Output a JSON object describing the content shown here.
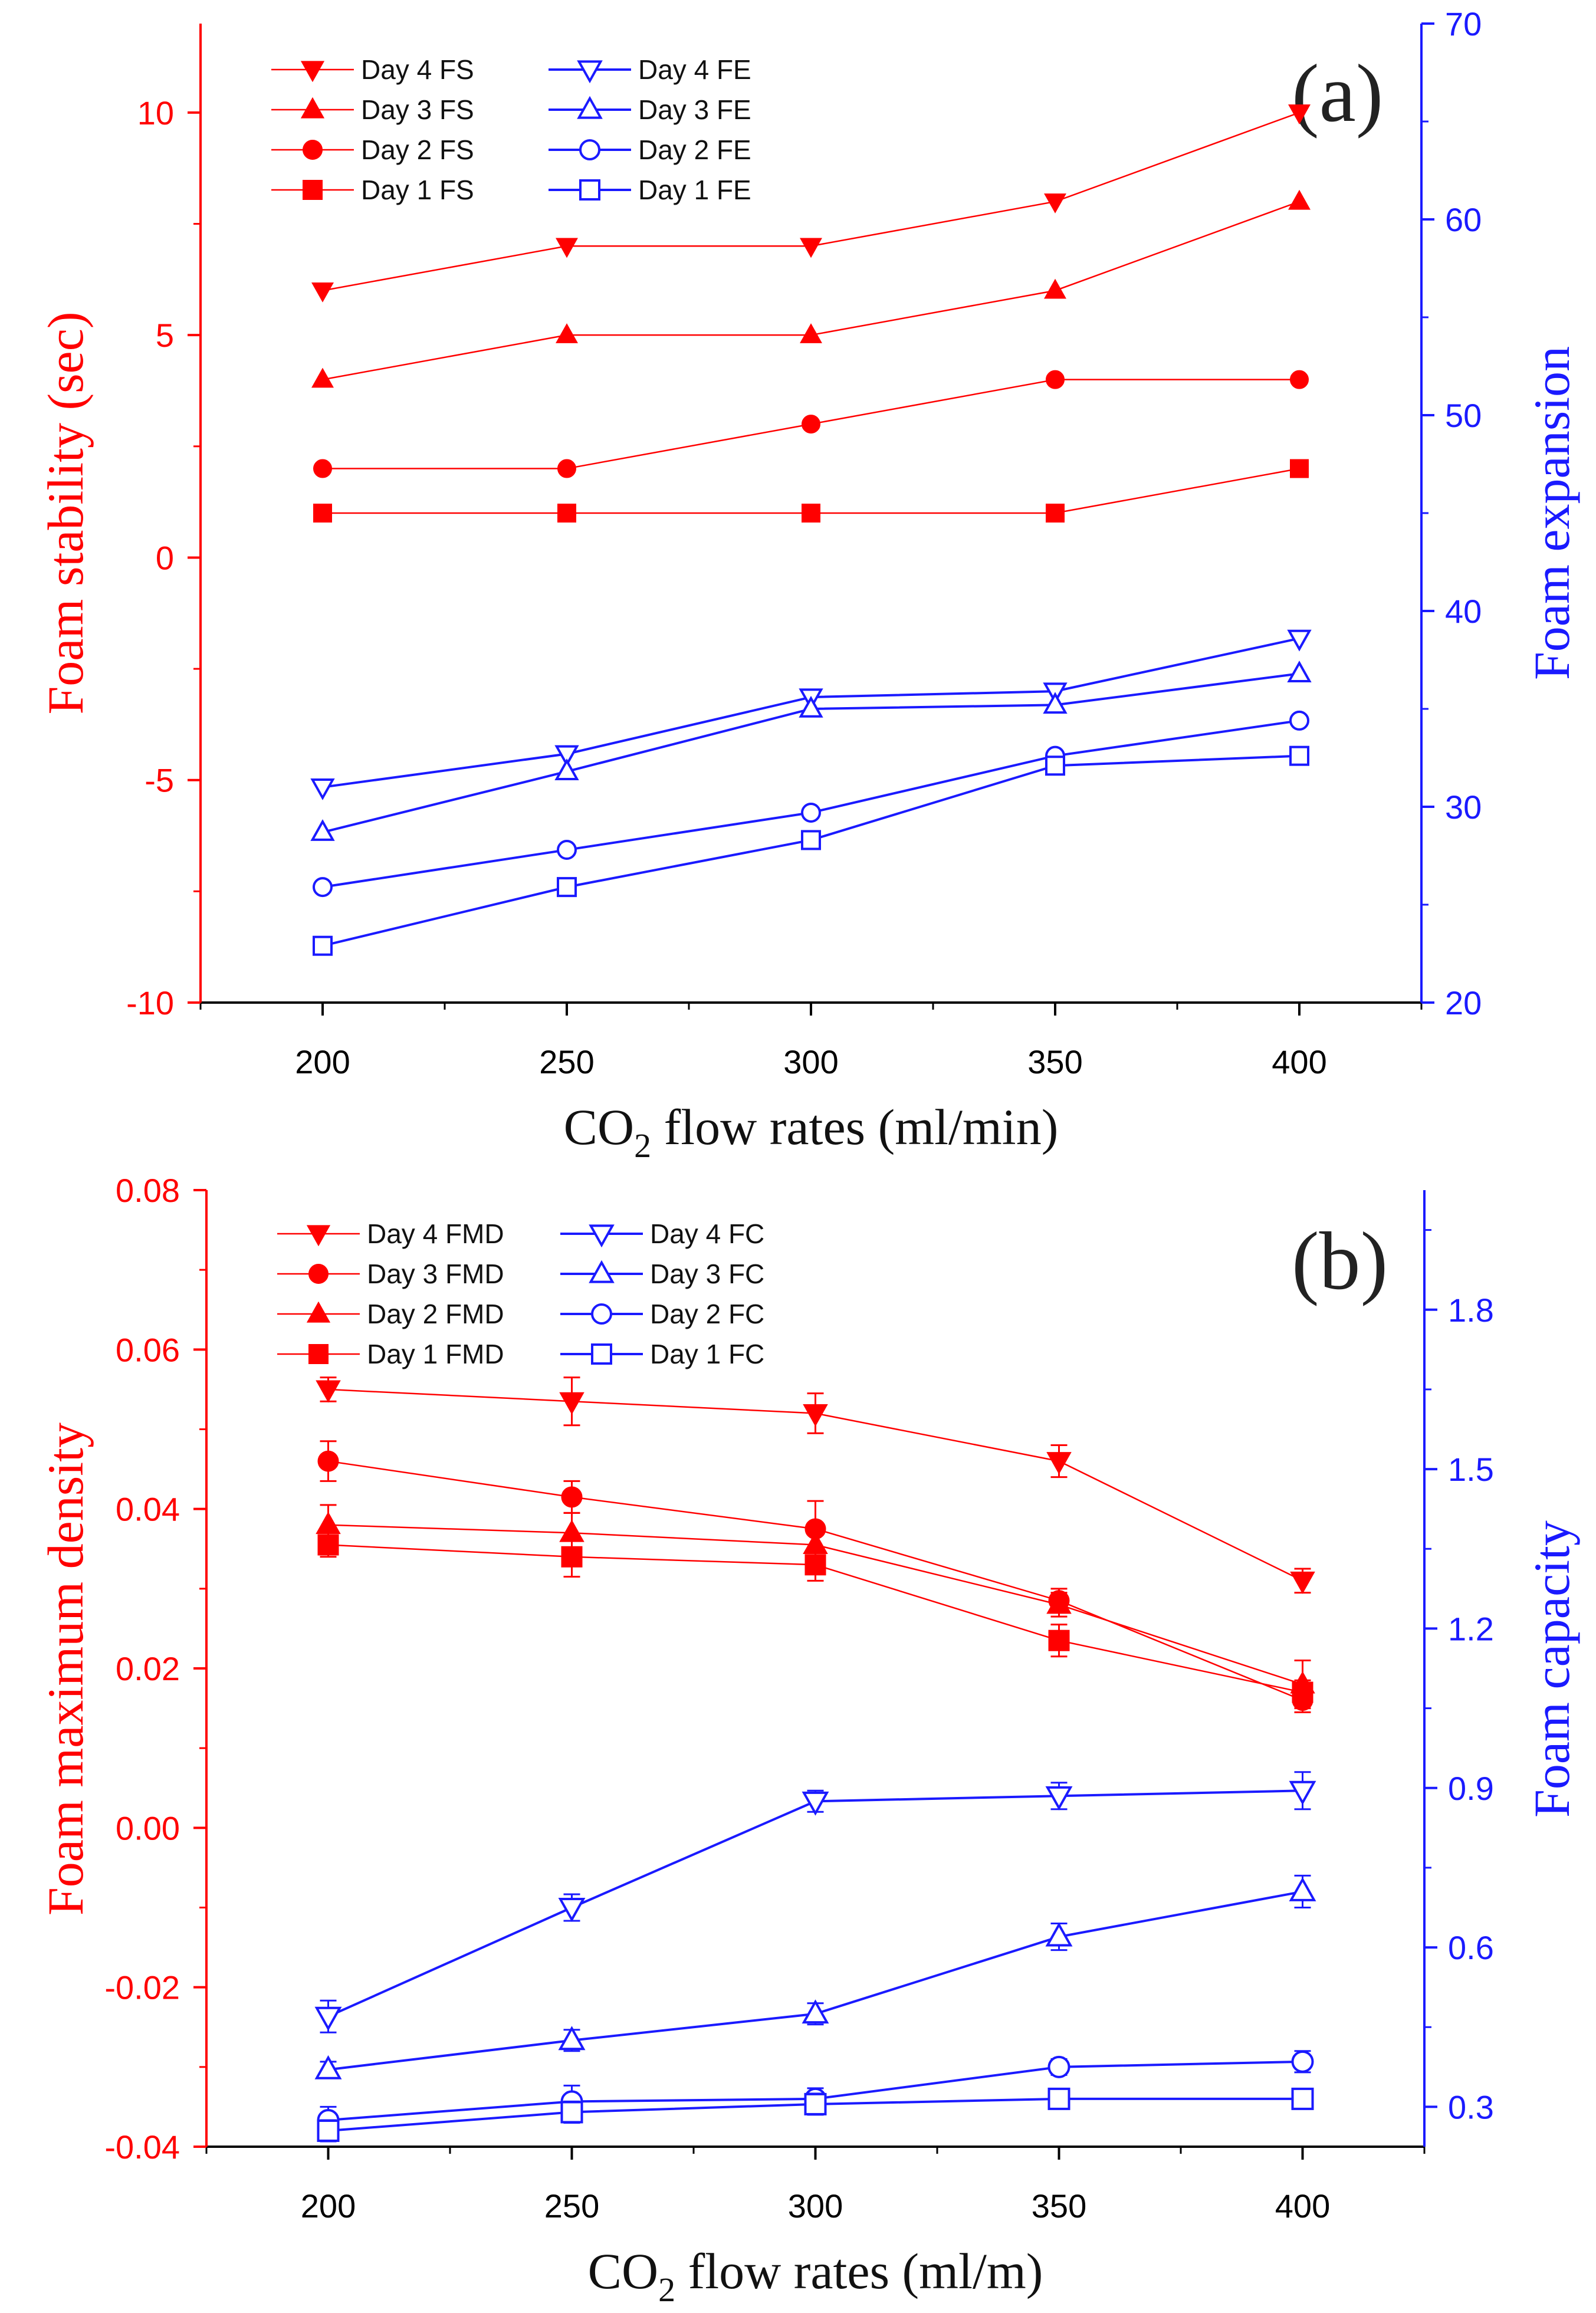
{
  "colors": {
    "red": "#ff0000",
    "blue": "#1a1aff"
  },
  "chart_data": [
    {
      "panel_label": "(a)",
      "type": "line",
      "xlabel_main": "CO",
      "xlabel_sub": "2",
      "xlabel_rest": " flow rates (ml/min)",
      "ylabel_left": "Foam stability (sec)",
      "ylabel_right": "Foam expansion",
      "x": [
        200,
        250,
        300,
        350,
        400
      ],
      "xlim": [
        175,
        425
      ],
      "ylim_left": [
        -10,
        12
      ],
      "ylim_right": [
        20,
        70
      ],
      "xticks": [
        "200",
        "250",
        "300",
        "350",
        "400"
      ],
      "yticks_left": [
        "-10",
        "-5",
        "0",
        "5",
        "10"
      ],
      "yticks_right": [
        "20",
        "30",
        "40",
        "50",
        "60",
        "70"
      ],
      "series_left": [
        {
          "name": "Day 4 FS",
          "marker": "tri-down",
          "values": [
            6,
            7,
            7,
            8,
            10
          ]
        },
        {
          "name": "Day 3 FS",
          "marker": "tri-up",
          "values": [
            4,
            5,
            5,
            6,
            8
          ]
        },
        {
          "name": "Day 2 FS",
          "marker": "circle",
          "values": [
            2,
            2,
            3,
            4,
            4
          ]
        },
        {
          "name": "Day 1 FS",
          "marker": "square",
          "values": [
            1,
            1,
            1,
            1,
            2
          ]
        }
      ],
      "series_right": [
        {
          "name": "Day 4 FE",
          "marker": "tri-down",
          "values": [
            31.0,
            32.7,
            35.6,
            35.9,
            38.6
          ]
        },
        {
          "name": "Day 3 FE",
          "marker": "tri-up",
          "values": [
            28.7,
            31.8,
            35.0,
            35.2,
            36.8
          ]
        },
        {
          "name": "Day 2 FE",
          "marker": "circle",
          "values": [
            25.9,
            27.8,
            29.7,
            32.6,
            34.4
          ]
        },
        {
          "name": "Day 1 FE",
          "marker": "square",
          "values": [
            22.9,
            25.9,
            28.3,
            32.1,
            32.6
          ]
        }
      ]
    },
    {
      "panel_label": "(b)",
      "type": "line",
      "xlabel_main": "CO",
      "xlabel_sub": "2",
      "xlabel_rest": " flow rates (ml/m)",
      "ylabel_left": "Foam maximum density",
      "ylabel_right": "Foam capacity",
      "x": [
        200,
        250,
        300,
        350,
        400
      ],
      "xlim": [
        175,
        425
      ],
      "ylim_left": [
        -0.04,
        0.08
      ],
      "ylim_right": [
        0.225,
        2.025
      ],
      "xticks": [
        "200",
        "250",
        "300",
        "350",
        "400"
      ],
      "yticks_left": [
        "-0.04",
        "-0.02",
        "0.00",
        "0.02",
        "0.04",
        "0.06",
        "0.08"
      ],
      "yticks_right": [
        "0.3",
        "0.6",
        "0.9",
        "1.2",
        "1.5",
        "1.8"
      ],
      "series_left": [
        {
          "name": "Day 4 FMD",
          "marker": "tri-down",
          "values": [
            0.055,
            0.0535,
            0.052,
            0.046,
            0.031
          ],
          "errors": [
            0.0015,
            0.003,
            0.0025,
            0.002,
            0.0015
          ]
        },
        {
          "name": "Day 3 FMD",
          "marker": "circle",
          "values": [
            0.046,
            0.0415,
            0.0375,
            0.0285,
            0.016
          ],
          "errors": [
            0.0025,
            0.002,
            0.0035,
            0.0015,
            0.0015
          ]
        },
        {
          "name": "Day 2 FMD",
          "marker": "tri-up",
          "values": [
            0.038,
            0.037,
            0.0355,
            0.028,
            0.018
          ],
          "errors": [
            0.0025,
            0.0025,
            0.002,
            0.0015,
            0.003
          ]
        },
        {
          "name": "Day 1 FMD",
          "marker": "square",
          "values": [
            0.0355,
            0.034,
            0.033,
            0.0235,
            0.017
          ],
          "errors": [
            0.0015,
            0.0025,
            0.002,
            0.002,
            0.0015
          ]
        }
      ],
      "series_right": [
        {
          "name": "Day 4 FC",
          "marker": "tri-down",
          "values": [
            0.47,
            0.675,
            0.875,
            0.885,
            0.895
          ],
          "errors": [
            0.03,
            0.025,
            0.02,
            0.025,
            0.035
          ]
        },
        {
          "name": "Day 3 FC",
          "marker": "tri-up",
          "values": [
            0.37,
            0.425,
            0.475,
            0.62,
            0.705
          ],
          "errors": [
            0.015,
            0.02,
            0.02,
            0.025,
            0.03
          ]
        },
        {
          "name": "Day 2 FC",
          "marker": "circle",
          "values": [
            0.275,
            0.31,
            0.315,
            0.375,
            0.385
          ],
          "errors": [
            0.025,
            0.03,
            0.02,
            0.015,
            0.02
          ]
        },
        {
          "name": "Day 1 FC",
          "marker": "square",
          "values": [
            0.255,
            0.29,
            0.305,
            0.315,
            0.315
          ],
          "errors": [
            0.02,
            0.02,
            0.02,
            0.01,
            0.01
          ]
        }
      ]
    }
  ]
}
